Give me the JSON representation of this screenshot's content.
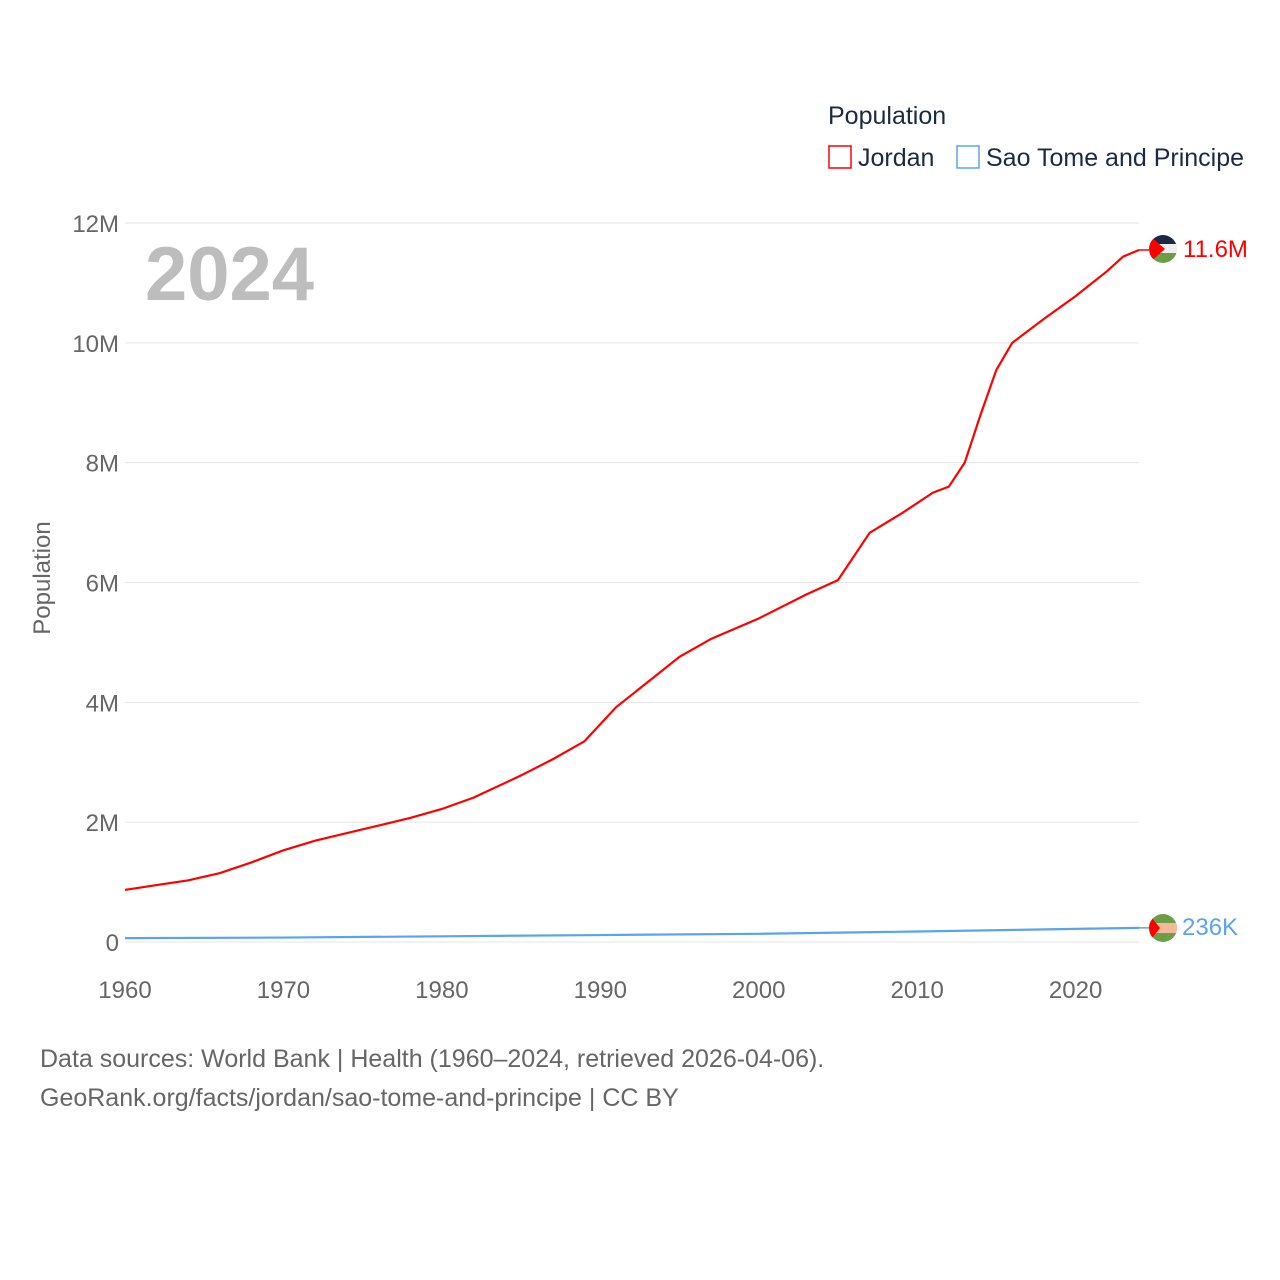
{
  "chart_data": {
    "type": "line",
    "year_label": "2024",
    "ylabel": "Population",
    "legend": {
      "title": "Population",
      "placement": "top-right"
    },
    "xlim": [
      1960,
      2024
    ],
    "ylim": [
      0,
      12000000
    ],
    "x_ticks": [
      "1960",
      "1970",
      "1980",
      "1990",
      "2000",
      "2010",
      "2020"
    ],
    "y_ticks": [
      {
        "v": 0,
        "label": "0"
      },
      {
        "v": 2000000,
        "label": "2M"
      },
      {
        "v": 4000000,
        "label": "4M"
      },
      {
        "v": 6000000,
        "label": "6M"
      },
      {
        "v": 8000000,
        "label": "8M"
      },
      {
        "v": 10000000,
        "label": "10M"
      },
      {
        "v": 12000000,
        "label": "12M"
      }
    ],
    "series": [
      {
        "name": "Jordan",
        "color": "#ff0000",
        "end_label": "11.6M",
        "x": [
          1960,
          1962,
          1964,
          1966,
          1968,
          1970,
          1972,
          1975,
          1978,
          1980,
          1982,
          1985,
          1987,
          1989,
          1991,
          1993,
          1995,
          1997,
          2000,
          2003,
          2005,
          2007,
          2009,
          2011,
          2012,
          2013,
          2014,
          2015,
          2016,
          2018,
          2020,
          2022,
          2023,
          2024
        ],
        "y": [
          870000,
          950000,
          1030000,
          1150000,
          1330000,
          1530000,
          1690000,
          1880000,
          2070000,
          2220000,
          2410000,
          2780000,
          3050000,
          3350000,
          3920000,
          4340000,
          4760000,
          5060000,
          5400000,
          5800000,
          6040000,
          6830000,
          7150000,
          7500000,
          7600000,
          8000000,
          8800000,
          9550000,
          10000000,
          10400000,
          10780000,
          11200000,
          11440000,
          11550000
        ]
      },
      {
        "name": "Sao Tome and Principe",
        "color": "#5aa5ea",
        "end_label": "236K",
        "x": [
          1960,
          1970,
          1980,
          1990,
          2000,
          2010,
          2020,
          2024
        ],
        "y": [
          64000,
          74000,
          95000,
          116000,
          137000,
          175000,
          219000,
          236000
        ]
      }
    ]
  },
  "footer": {
    "line1": "Data sources: World Bank | Health (1960–2024, retrieved 2026-04-06).",
    "line2": "GeoRank.org/facts/jordan/sao-tome-and-principe | CC BY"
  }
}
